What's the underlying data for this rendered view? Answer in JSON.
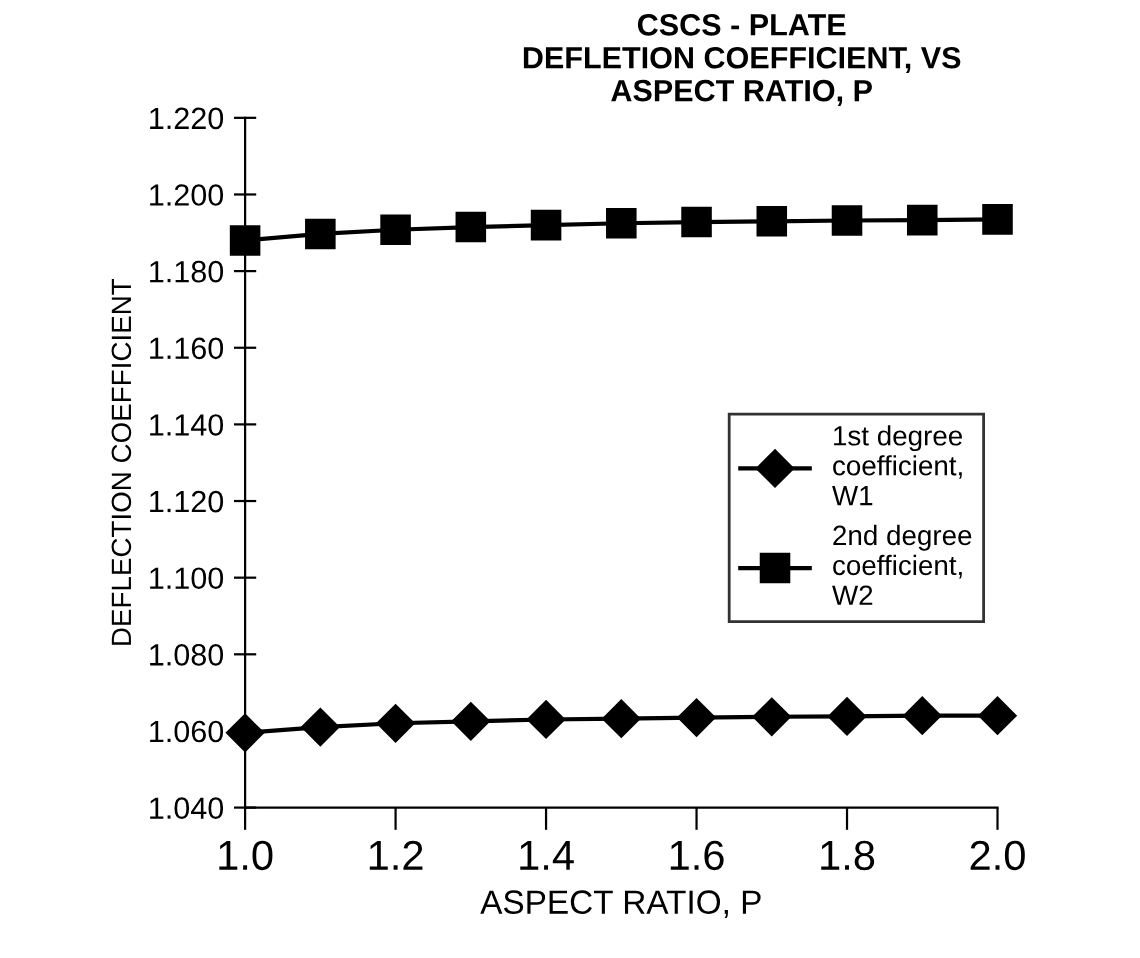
{
  "chart_data": {
    "type": "line",
    "title": "CSCS - PLATE\nDEFLETION COEFFICIENT, VS\nASPECT RATIO, P",
    "xlabel": "ASPECT RATIO, P",
    "ylabel": "DEFLECTION COEFFICIENT",
    "x": [
      1.0,
      1.1,
      1.2,
      1.3,
      1.4,
      1.5,
      1.6,
      1.7,
      1.8,
      1.9,
      2.0
    ],
    "series": [
      {
        "name": "1st degree\ncoefficient,\nW1",
        "color": "#000000",
        "marker": "diamond",
        "values": [
          1.0595,
          1.061,
          1.062,
          1.0625,
          1.063,
          1.0632,
          1.0635,
          1.0637,
          1.0638,
          1.064,
          1.064
        ]
      },
      {
        "name": "2nd degree\ncoefficient,\nW2",
        "color": "#000000",
        "marker": "square",
        "values": [
          1.188,
          1.1897,
          1.1908,
          1.1915,
          1.192,
          1.1925,
          1.1928,
          1.193,
          1.1932,
          1.1933,
          1.1935
        ]
      }
    ],
    "xlim": [
      1.0,
      2.0
    ],
    "xticks": [
      {
        "value": 1.0,
        "label": "1.0"
      },
      1.2,
      1.4,
      1.6,
      1.8,
      {
        "value": 2.0,
        "label": "2.0"
      }
    ],
    "ylim": [
      1.04,
      1.22
    ],
    "yticks": [
      {
        "value": 1.04,
        "label": "1.040"
      },
      {
        "value": 1.06,
        "label": "1.060"
      },
      {
        "value": 1.08,
        "label": "1.080"
      },
      {
        "value": 1.1,
        "label": "1.100"
      },
      {
        "value": 1.12,
        "label": "1.120"
      },
      {
        "value": 1.14,
        "label": "1.140"
      },
      {
        "value": 1.16,
        "label": "1.160"
      },
      {
        "value": 1.18,
        "label": "1.180"
      },
      {
        "value": 1.2,
        "label": "1.200"
      },
      {
        "value": 1.22,
        "label": "1.220"
      }
    ],
    "grid": false,
    "legend": "right",
    "line_style": "solid"
  }
}
